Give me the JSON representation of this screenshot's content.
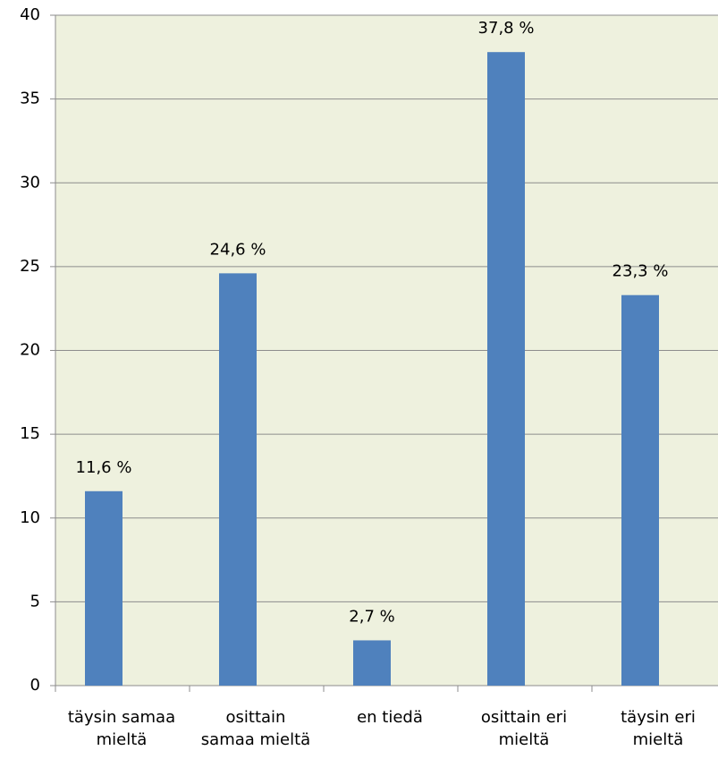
{
  "chart_data": {
    "type": "bar",
    "categories": [
      [
        "täysin samaa",
        "mieltä"
      ],
      [
        "osittain",
        "samaa mieltä"
      ],
      [
        "en tiedä"
      ],
      [
        "osittain eri",
        "mieltä"
      ],
      [
        "täysin eri",
        "mieltä"
      ]
    ],
    "values": [
      11.6,
      24.6,
      2.7,
      37.8,
      23.3
    ],
    "value_labels": [
      "11,6 %",
      "24,6 %",
      "2,7 %",
      "37,8 %",
      "23,3 %"
    ],
    "color": "#4f81bd",
    "ylim": [
      0,
      40
    ],
    "yticks": [
      0,
      5,
      10,
      15,
      20,
      25,
      30,
      35,
      40
    ],
    "grid": true
  }
}
